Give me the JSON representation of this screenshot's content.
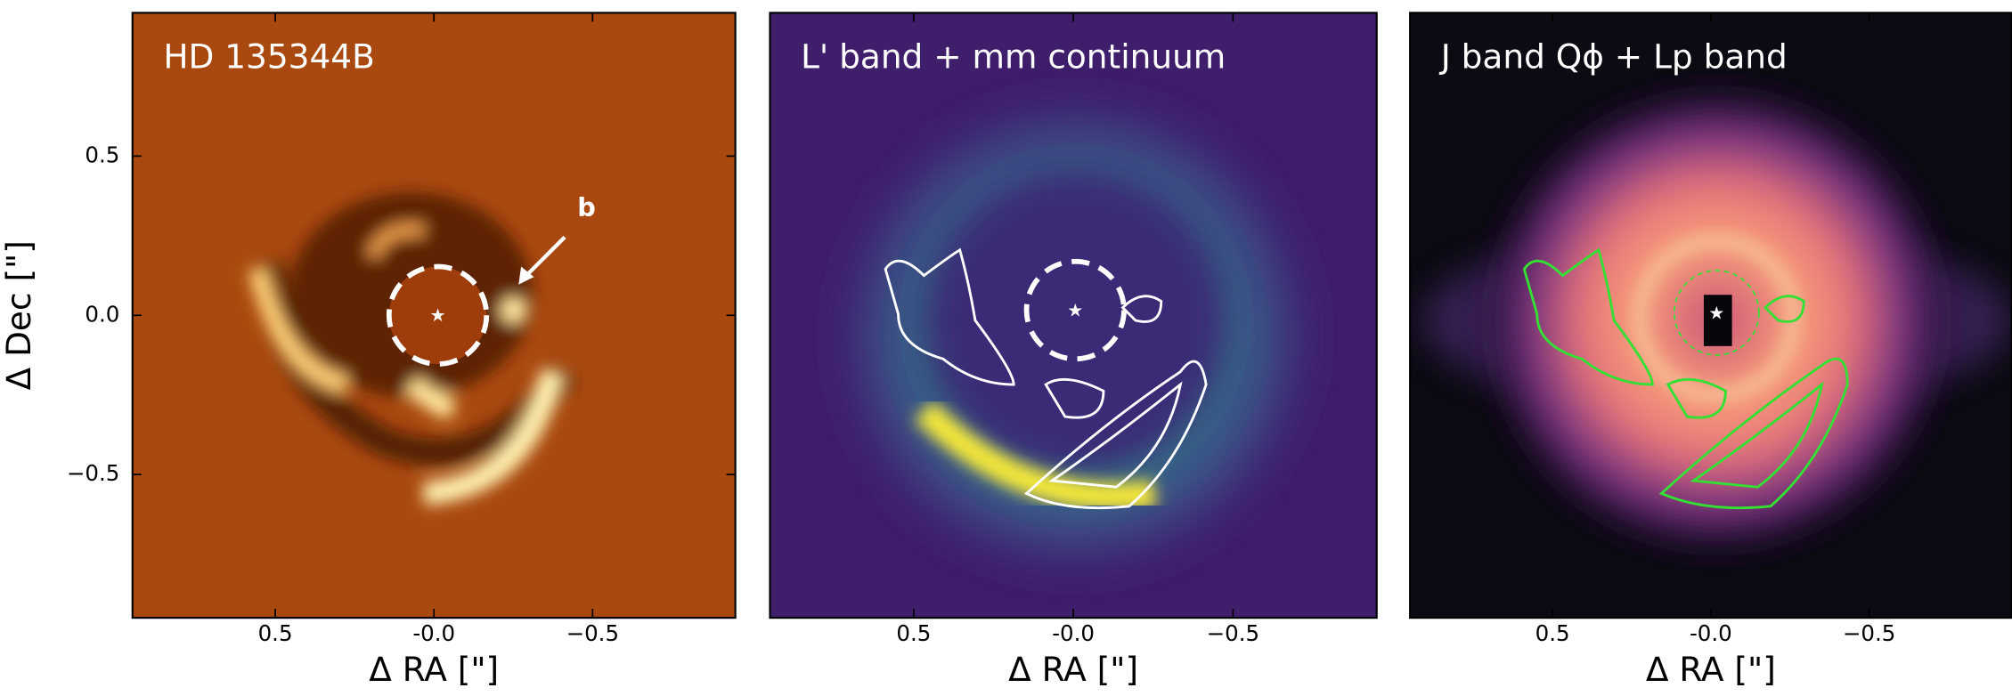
{
  "chart_data": [
    {
      "type": "image",
      "title": "HD 135344B",
      "xlabel": "Δ RA [\"]",
      "ylabel": "Δ Dec [\"]",
      "xlim": [
        0.95,
        -0.95
      ],
      "ylim": [
        -0.95,
        0.95
      ],
      "xticks": [
        0.5,
        {
          "value": 0,
          "label": "-0.0"
        },
        {
          "value": -0.5,
          "label": "−0.5"
        }
      ],
      "yticks": [
        {
          "value": -0.5,
          "label": "−0.5"
        },
        {
          "value": 0,
          "label": "0.0"
        },
        0.5
      ],
      "annotations": [
        "b"
      ]
    },
    {
      "type": "image",
      "title": "L' band + mm continuum",
      "xlabel": "Δ RA [\"]",
      "xlim": [
        0.95,
        -0.95
      ],
      "ylim": [
        -0.95,
        0.95
      ],
      "xticks": [
        0.5,
        {
          "value": 0,
          "label": "-0.0"
        },
        {
          "value": -0.5,
          "label": "−0.5"
        }
      ]
    },
    {
      "type": "image",
      "title": "J band Qϕ + Lp band",
      "xlabel": "Δ RA [\"]",
      "xlim": [
        0.95,
        -0.95
      ],
      "ylim": [
        -0.95,
        0.95
      ],
      "xticks": [
        0.5,
        {
          "value": 0,
          "label": "-0.0"
        },
        {
          "value": -0.5,
          "label": "−0.5"
        }
      ]
    }
  ]
}
